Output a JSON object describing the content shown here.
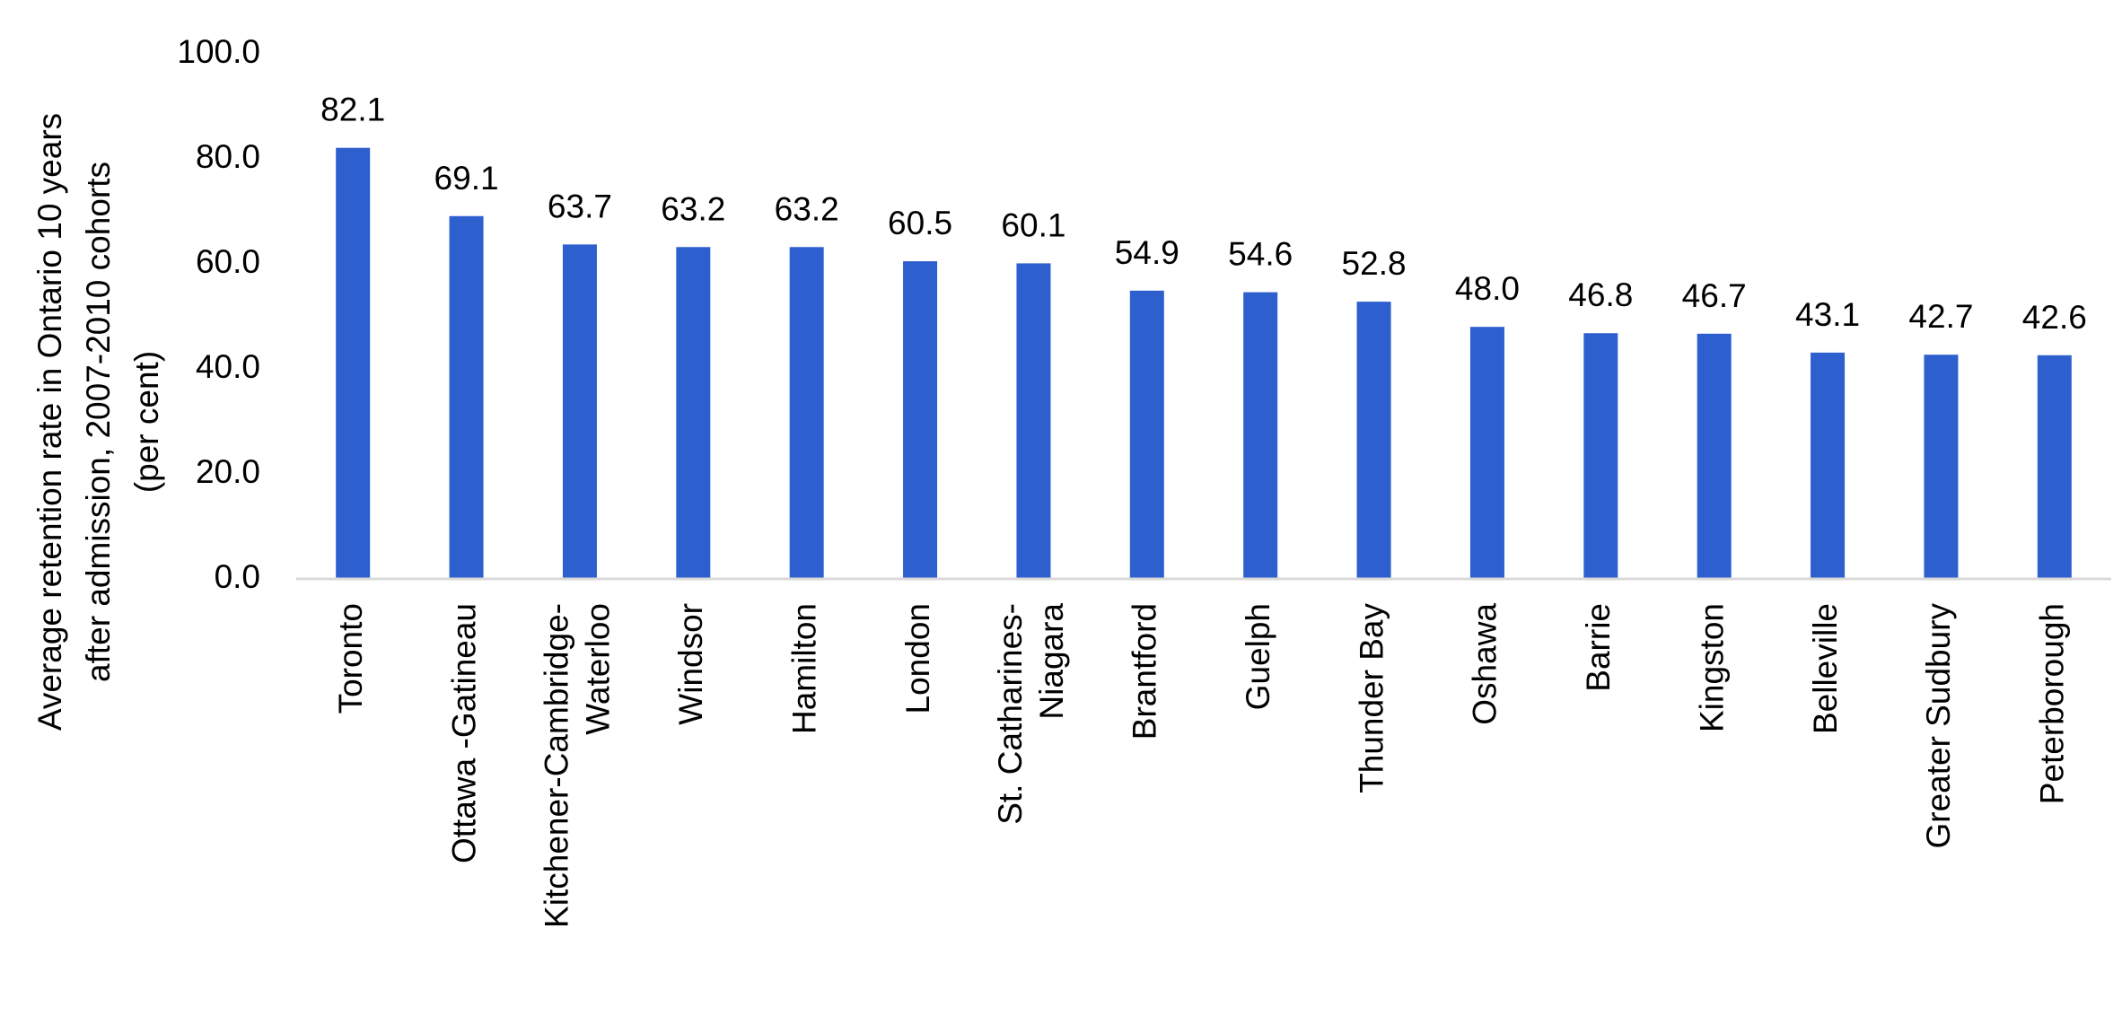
{
  "chart_data": {
    "type": "bar",
    "title": "",
    "xlabel": "",
    "ylabel_lines": [
      "Average retention rate in Ontario 10 years",
      "after  admission, 2007-2010 cohorts",
      "(per cent)"
    ],
    "ylim": [
      0,
      100
    ],
    "yticks": [
      "0.0",
      "20.0",
      "40.0",
      "60.0",
      "80.0",
      "100.0"
    ],
    "categories": [
      [
        "Toronto"
      ],
      [
        "Ottawa -Gatineau"
      ],
      [
        "Kitchener-Cambridge-",
        "Waterloo"
      ],
      [
        "Windsor"
      ],
      [
        "Hamilton"
      ],
      [
        "London"
      ],
      [
        "St. Catharines-",
        "Niagara"
      ],
      [
        "Brantford"
      ],
      [
        "Guelph"
      ],
      [
        "Thunder Bay"
      ],
      [
        "Oshawa"
      ],
      [
        "Barrie"
      ],
      [
        "Kingston"
      ],
      [
        "Belleville"
      ],
      [
        "Greater Sudbury"
      ],
      [
        "Peterborough"
      ]
    ],
    "values": [
      82.1,
      69.1,
      63.7,
      63.2,
      63.2,
      60.5,
      60.1,
      54.9,
      54.6,
      52.8,
      48.0,
      46.8,
      46.7,
      43.1,
      42.7,
      42.6
    ],
    "value_labels": [
      "82.1",
      "69.1",
      "63.7",
      "63.2",
      "63.2",
      "60.5",
      "60.1",
      "54.9",
      "54.6",
      "52.8",
      "48.0",
      "46.8",
      "46.7",
      "43.1",
      "42.7",
      "42.6"
    ],
    "bar_color": "#2e5fce",
    "axis_color": "#d9d9d9",
    "grid": false,
    "legend": "none"
  }
}
